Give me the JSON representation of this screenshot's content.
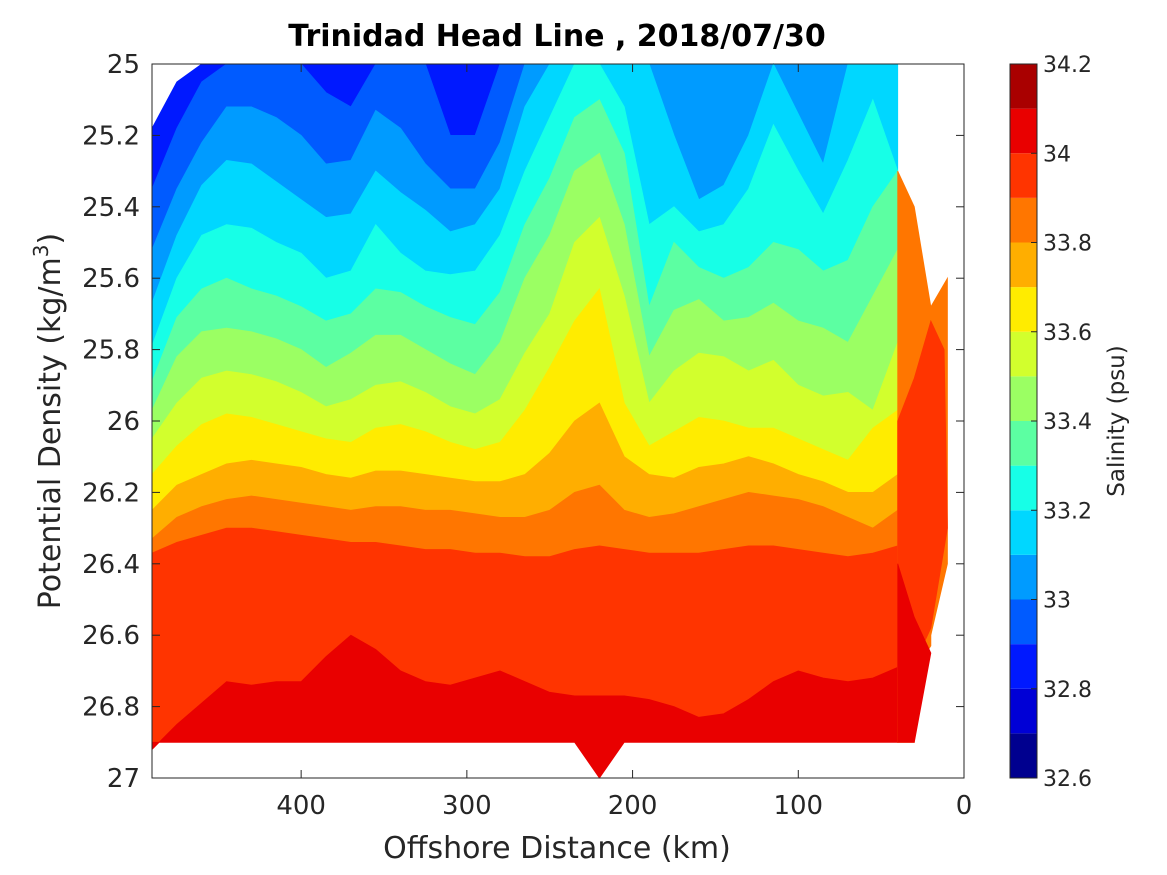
{
  "chart_data": {
    "type": "contour",
    "title": "Trinidad Head Line , 2018/07/30",
    "xlabel": "Offshore Distance (km)",
    "ylabel_prefix": "Potential Density (kg/m",
    "ylabel_sup": "3",
    "ylabel_suffix": ")",
    "colorbar_label": "Salinity (psu)",
    "xlim": [
      490,
      0
    ],
    "x_reversed": true,
    "ylim": [
      25,
      27
    ],
    "y_reversed": true,
    "x_ticks": [
      400,
      300,
      200,
      100,
      0
    ],
    "y_ticks": [
      "25",
      "25.2",
      "25.4",
      "25.6",
      "25.8",
      "26",
      "26.2",
      "26.4",
      "26.6",
      "26.8",
      "27"
    ],
    "colorbar_ticks": [
      "32.6",
      "32.8",
      "33",
      "33.2",
      "33.4",
      "33.6",
      "33.8",
      "34",
      "34.2"
    ],
    "levels": [
      32.6,
      32.7,
      32.8,
      32.9,
      33.0,
      33.1,
      33.2,
      33.3,
      33.4,
      33.5,
      33.6,
      33.7,
      33.8,
      33.9,
      34.0,
      34.1,
      34.2
    ],
    "colormap": [
      "#00008f",
      "#0000d6",
      "#0019ff",
      "#005bff",
      "#009bff",
      "#00d7ff",
      "#17ffe7",
      "#5cffa2",
      "#9bff63",
      "#d2ff2d",
      "#ffec00",
      "#ffae00",
      "#ff7600",
      "#ff3400",
      "#e90000",
      "#a90000"
    ],
    "x": [
      490,
      475,
      460,
      445,
      430,
      415,
      400,
      385,
      370,
      355,
      340,
      325,
      310,
      295,
      280,
      265,
      250,
      235,
      220,
      205,
      190,
      175,
      160,
      145,
      130,
      115,
      100,
      85,
      70,
      55,
      40
    ],
    "boundaries": [
      [
        25.18,
        25.05,
        25.0,
        25.0,
        25.0,
        25.0,
        25.0,
        25.0,
        25.0,
        25.0,
        25.0,
        25.0,
        25.0,
        25.0,
        25.0,
        25.0,
        25.0,
        25.0,
        25.0,
        25.0,
        25.0,
        25.0,
        25.0,
        25.0,
        25.0,
        25.0,
        25.0,
        25.0,
        25.0,
        25.0,
        25.0
      ],
      [
        25.35,
        25.18,
        25.05,
        25.0,
        25.0,
        25.0,
        25.0,
        25.08,
        25.12,
        25.0,
        25.0,
        25.0,
        25.2,
        25.2,
        25.0,
        25.0,
        25.0,
        25.0,
        25.0,
        25.0,
        25.0,
        25.0,
        25.0,
        25.0,
        25.0,
        25.0,
        25.0,
        25.0,
        25.0,
        25.0,
        25.0
      ],
      [
        25.52,
        25.35,
        25.22,
        25.12,
        25.12,
        25.15,
        25.2,
        25.28,
        25.27,
        25.13,
        25.18,
        25.28,
        25.35,
        25.35,
        25.22,
        25.0,
        25.0,
        25.0,
        25.0,
        25.0,
        25.0,
        25.0,
        25.0,
        25.0,
        25.0,
        25.0,
        25.0,
        25.0,
        25.0,
        25.0,
        25.0
      ],
      [
        25.67,
        25.48,
        25.34,
        25.27,
        25.28,
        25.33,
        25.38,
        25.43,
        25.42,
        25.3,
        25.36,
        25.41,
        25.47,
        25.45,
        25.35,
        25.12,
        25.0,
        25.0,
        25.0,
        25.0,
        25.0,
        25.2,
        25.38,
        25.34,
        25.2,
        25.0,
        25.14,
        25.28,
        25.0,
        25.0,
        25.0
      ],
      [
        25.79,
        25.6,
        25.48,
        25.45,
        25.46,
        25.5,
        25.53,
        25.6,
        25.58,
        25.45,
        25.53,
        25.58,
        25.59,
        25.58,
        25.48,
        25.3,
        25.15,
        25.0,
        25.0,
        25.12,
        25.45,
        25.4,
        25.47,
        25.45,
        25.35,
        25.17,
        25.3,
        25.42,
        25.27,
        25.1,
        25.3
      ],
      [
        25.89,
        25.71,
        25.63,
        25.6,
        25.63,
        25.65,
        25.68,
        25.72,
        25.7,
        25.63,
        25.64,
        25.68,
        25.71,
        25.73,
        25.64,
        25.45,
        25.32,
        25.15,
        25.1,
        25.25,
        25.68,
        25.5,
        25.57,
        25.6,
        25.57,
        25.5,
        25.52,
        25.58,
        25.55,
        25.4,
        25.3
      ],
      [
        25.97,
        25.82,
        25.75,
        25.74,
        25.75,
        25.77,
        25.8,
        25.85,
        25.81,
        25.76,
        25.76,
        25.8,
        25.84,
        25.87,
        25.78,
        25.6,
        25.48,
        25.3,
        25.25,
        25.45,
        25.82,
        25.69,
        25.66,
        25.72,
        25.71,
        25.67,
        25.72,
        25.74,
        25.78,
        25.65,
        25.52
      ],
      [
        26.05,
        25.95,
        25.88,
        25.86,
        25.87,
        25.89,
        25.92,
        25.96,
        25.94,
        25.9,
        25.89,
        25.92,
        25.96,
        25.98,
        25.94,
        25.81,
        25.7,
        25.5,
        25.43,
        25.65,
        25.95,
        25.86,
        25.81,
        25.82,
        25.86,
        25.83,
        25.9,
        25.93,
        25.92,
        25.97,
        25.78
      ],
      [
        26.15,
        26.07,
        26.01,
        25.98,
        25.99,
        26.01,
        26.03,
        26.05,
        26.06,
        26.02,
        26.01,
        26.03,
        26.06,
        26.08,
        26.06,
        25.97,
        25.85,
        25.72,
        25.63,
        25.95,
        26.07,
        26.03,
        25.99,
        26.0,
        26.02,
        26.02,
        26.05,
        26.08,
        26.11,
        26.02,
        25.97
      ],
      [
        26.25,
        26.18,
        26.15,
        26.12,
        26.11,
        26.12,
        26.13,
        26.15,
        26.16,
        26.14,
        26.14,
        26.15,
        26.16,
        26.17,
        26.17,
        26.15,
        26.09,
        26.0,
        25.95,
        26.1,
        26.15,
        26.16,
        26.13,
        26.12,
        26.1,
        26.12,
        26.15,
        26.17,
        26.2,
        26.2,
        26.15
      ],
      [
        26.33,
        26.27,
        26.24,
        26.22,
        26.21,
        26.22,
        26.23,
        26.24,
        26.25,
        26.24,
        26.24,
        26.25,
        26.25,
        26.26,
        26.27,
        26.27,
        26.25,
        26.2,
        26.18,
        26.25,
        26.27,
        26.26,
        26.24,
        26.22,
        26.2,
        26.21,
        26.22,
        26.24,
        26.27,
        26.3,
        26.25
      ],
      [
        26.37,
        26.34,
        26.32,
        26.3,
        26.3,
        26.31,
        26.32,
        26.33,
        26.34,
        26.34,
        26.35,
        26.36,
        26.36,
        26.37,
        26.37,
        26.38,
        26.38,
        26.36,
        26.35,
        26.36,
        26.37,
        26.37,
        26.37,
        26.36,
        26.35,
        26.35,
        26.36,
        26.37,
        26.38,
        26.37,
        26.35
      ],
      [
        26.92,
        26.85,
        26.79,
        26.73,
        26.74,
        26.73,
        26.73,
        26.66,
        26.6,
        26.64,
        26.7,
        26.73,
        26.74,
        26.72,
        26.7,
        26.73,
        26.76,
        26.77,
        26.77,
        26.77,
        26.78,
        26.8,
        26.83,
        26.82,
        26.78,
        26.73,
        26.7,
        26.72,
        26.73,
        26.72,
        26.69
      ]
    ],
    "bottom_edge": [
      26.9,
      26.9,
      26.9,
      26.9,
      26.9,
      26.9,
      26.9,
      26.9,
      26.9,
      26.9,
      26.9,
      26.9,
      26.9,
      26.9,
      26.9,
      26.9,
      26.9,
      26.9,
      27.0,
      26.9,
      26.9,
      26.9,
      26.9,
      26.9,
      26.9,
      26.9,
      26.9,
      26.9,
      26.9,
      26.9,
      26.9
    ],
    "start_level_index": 2,
    "nearshore_top": [
      [
        40,
        25.3
      ],
      [
        30,
        25.4
      ],
      [
        20,
        25.68
      ],
      [
        10,
        25.6
      ]
    ],
    "nearshore_bottom": [
      [
        10,
        26.4
      ],
      [
        20,
        26.6
      ],
      [
        20,
        26.63
      ],
      [
        30,
        26.7
      ],
      [
        30,
        26.9
      ],
      [
        40,
        26.9
      ]
    ],
    "grid": false,
    "colorbar_position": "right"
  }
}
